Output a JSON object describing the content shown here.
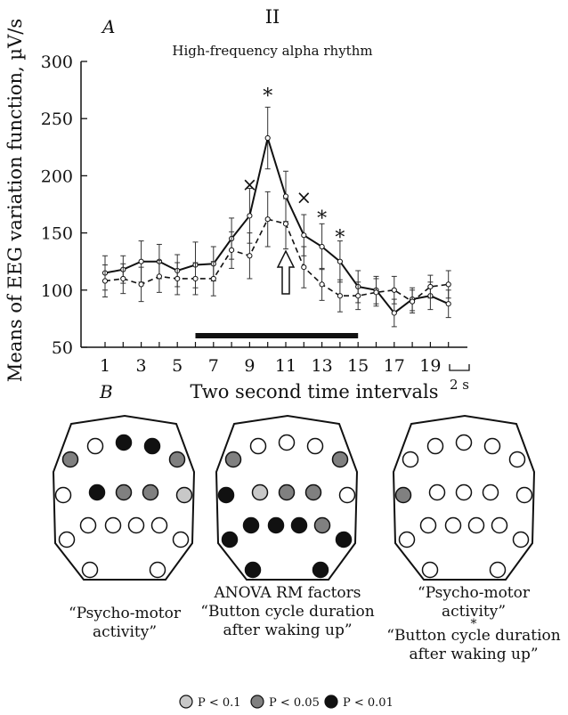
{
  "panel_a": {
    "label": "A",
    "roman": "II",
    "title": "High-frequency alpha rhythm",
    "ylabel": "Means of EEG variation function, µV/s",
    "xlabel": "Two second time intervals",
    "scale_bar_label": "2 s"
  },
  "chart_data": {
    "type": "line",
    "title": "High-frequency alpha rhythm",
    "xlabel": "Two second time intervals",
    "ylabel": "Means of EEG variation function, µV/s",
    "x": [
      1,
      2,
      3,
      4,
      5,
      6,
      7,
      8,
      9,
      10,
      11,
      12,
      13,
      14,
      15,
      16,
      17,
      18,
      19,
      20
    ],
    "x_tick_labels": [
      "1",
      "3",
      "5",
      "7",
      "9",
      "11",
      "13",
      "15",
      "17",
      "19"
    ],
    "y_ticks": [
      50,
      100,
      150,
      200,
      250,
      300
    ],
    "ylim": [
      50,
      300
    ],
    "xlim": [
      0.5,
      20.5
    ],
    "series": [
      {
        "style": "solid",
        "values": [
          115,
          118,
          125,
          125,
          117,
          122,
          123,
          145,
          165,
          233,
          182,
          148,
          138,
          125,
          103,
          100,
          80,
          92,
          95,
          88
        ],
        "errors": [
          15,
          12,
          18,
          15,
          14,
          20,
          15,
          18,
          24,
          27,
          22,
          18,
          20,
          18,
          14,
          12,
          12,
          10,
          12,
          12
        ]
      },
      {
        "style": "dashed",
        "values": [
          108,
          110,
          105,
          112,
          110,
          110,
          110,
          135,
          130,
          162,
          158,
          120,
          105,
          95,
          95,
          98,
          100,
          90,
          103,
          105
        ],
        "errors": [
          14,
          13,
          15,
          14,
          14,
          14,
          15,
          16,
          20,
          24,
          22,
          18,
          14,
          14,
          12,
          12,
          12,
          10,
          10,
          12
        ]
      }
    ],
    "markers": [
      {
        "x": 10,
        "y": 272,
        "symbol": "*"
      },
      {
        "x": 9,
        "y": 192,
        "symbol": "×"
      },
      {
        "x": 12,
        "y": 181,
        "symbol": "×"
      },
      {
        "x": 13,
        "y": 165,
        "symbol": "*"
      },
      {
        "x": 14,
        "y": 148,
        "symbol": "*"
      }
    ],
    "stimulus_bar": [
      6,
      15
    ],
    "arrow_x": 11
  },
  "panel_b": {
    "label": "B",
    "heads": [
      {
        "electrodes": [
          "white",
          "black",
          "black",
          "gray",
          "gray",
          "gray",
          "white",
          "black",
          "gray",
          "gray",
          "lightgray",
          "white",
          "white",
          "white",
          "white",
          "white",
          "white",
          "white",
          "white"
        ],
        "caption_lines": [
          "“Psycho-motor",
          "activity”"
        ]
      },
      {
        "electrodes": [
          "white",
          "white",
          "white",
          "gray",
          "gray",
          "gray",
          "black",
          "lightgray",
          "gray",
          "gray",
          "white",
          "black",
          "black",
          "black",
          "gray",
          "black",
          "black",
          "black",
          "black"
        ],
        "caption_lines": [
          "ANOVA RM factors",
          "“Button cycle duration",
          "after waking up”"
        ]
      },
      {
        "electrodes": [
          "white",
          "white",
          "white",
          "white",
          "white",
          "white",
          "gray",
          "white",
          "white",
          "white",
          "white",
          "white",
          "white",
          "white",
          "white",
          "white",
          "white",
          "white",
          "white"
        ],
        "caption_lines": [
          "“Psycho-motor",
          "activity”",
          "*",
          "“Button cycle duration",
          "after waking up”"
        ]
      }
    ]
  },
  "legend": [
    {
      "label": "P < 0.1",
      "color": "#c8c8c8"
    },
    {
      "label": "P < 0.05",
      "color": "#808080"
    },
    {
      "label": "P < 0.01",
      "color": "#111111"
    }
  ]
}
